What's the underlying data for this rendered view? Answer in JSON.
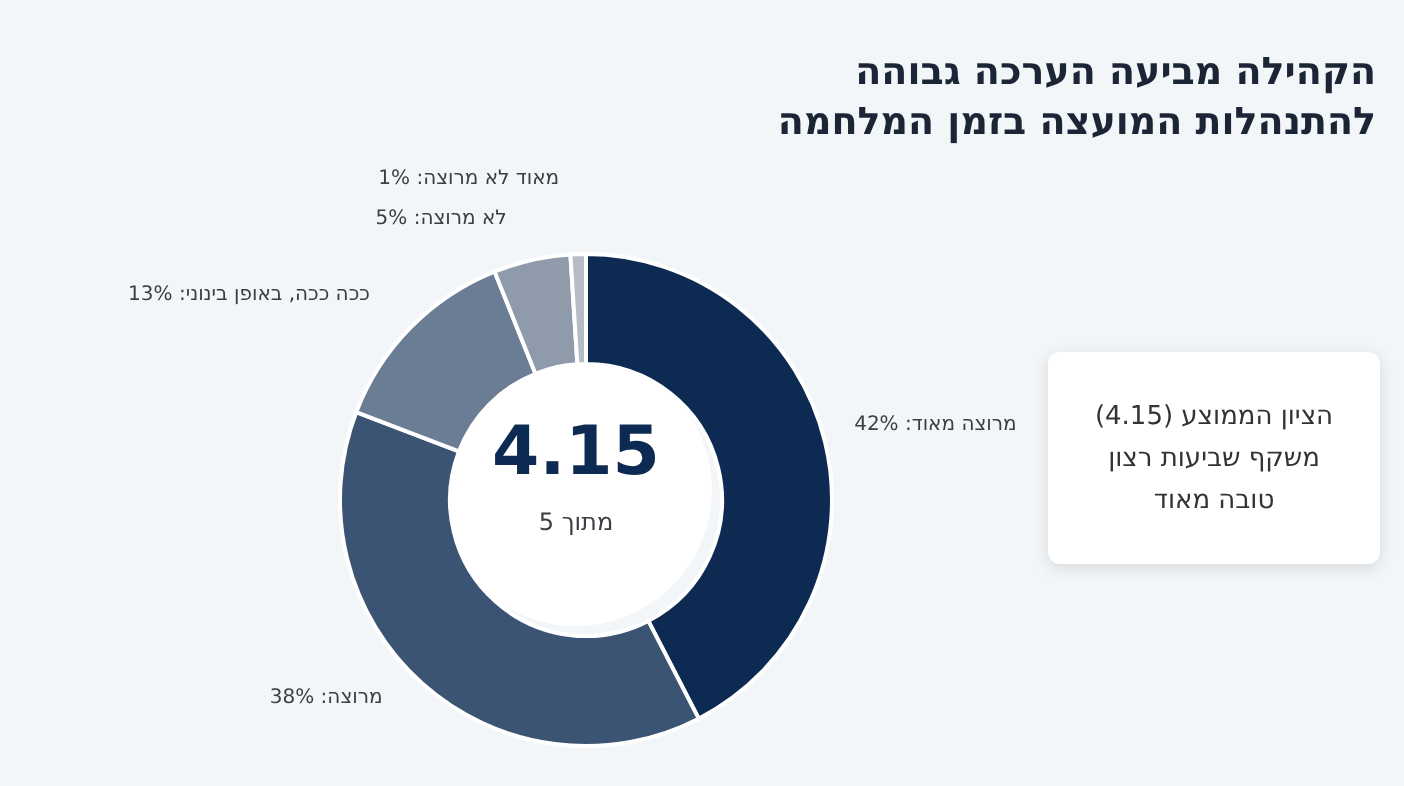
{
  "chart_data": {
    "type": "donut",
    "title": "הקהילה מביעה הערכה גבוהה\nלהתנהלות המועצה בזמן המלחמה",
    "categories": [
      "מרוצה מאוד",
      "מרוצה",
      "ככה ככה, באופן בינוני",
      "לא מרוצה",
      "מאוד לא מרוצה"
    ],
    "values": [
      42,
      38,
      13,
      5,
      1
    ],
    "colors": [
      "#0d2b52",
      "#3b5474",
      "#6a7d94",
      "#8f9bab",
      "#b5bcc6"
    ],
    "value_labels": [
      "42%",
      "38%",
      "13%",
      "5%",
      "1%"
    ],
    "annotations": [
      "4.15",
      "מתוך 5",
      "הציון הממוצע (4.15) משקף שביעות רצון טובה מאוד"
    ]
  }
}
